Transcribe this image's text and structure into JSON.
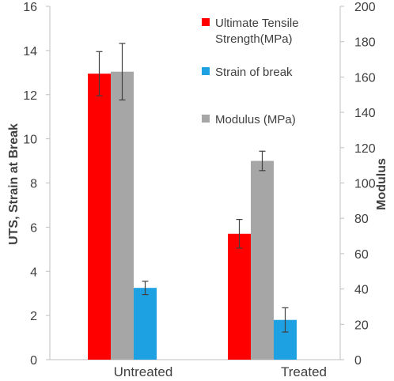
{
  "chart_data": {
    "type": "bar",
    "categories": [
      "Untreated",
      "Treated"
    ],
    "series": [
      {
        "name": "Ultimate Tensile Strength(MPa)",
        "legend_lines": [
          "Ultimate Tensile",
          "Strength(MPa)"
        ],
        "axis": "left",
        "color": "#ff0000",
        "values": [
          12.95,
          5.7
        ],
        "errors": [
          1.0,
          0.65
        ]
      },
      {
        "name": "Modulus (MPa)",
        "legend_lines": [
          "Modulus (MPa)"
        ],
        "axis": "right",
        "color": "#a6a6a6",
        "values": [
          163,
          112.5
        ],
        "errors": [
          16,
          5.5
        ]
      },
      {
        "name": "Strain of break",
        "legend_lines": [
          "Strain of break"
        ],
        "axis": "left",
        "color": "#1da1e2",
        "values": [
          3.25,
          1.8
        ],
        "errors": [
          0.3,
          0.55
        ]
      }
    ],
    "legend_order": [
      0,
      2,
      1
    ],
    "legend_placement": "top-right",
    "ylabel_left": "UTS, Strain at Break",
    "ylabel_right": "Modulus",
    "ylim_left": [
      0,
      16
    ],
    "yticks_left": [
      "0",
      "2",
      "4",
      "6",
      "8",
      "10",
      "12",
      "14",
      "16"
    ],
    "ylim_right": [
      0,
      200
    ],
    "yticks_right": [
      "0",
      "20",
      "40",
      "60",
      "80",
      "100",
      "120",
      "140",
      "160",
      "180",
      "200"
    ],
    "grid": false
  }
}
